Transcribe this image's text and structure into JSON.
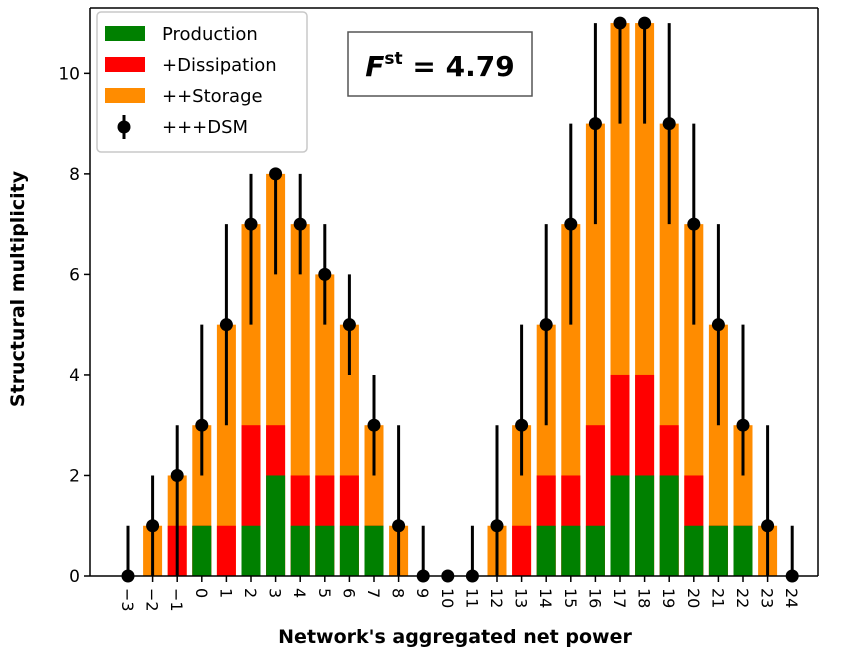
{
  "chart_data": {
    "type": "bar",
    "xlabel": "Network's aggregated net power",
    "ylabel": "Structural multiplicity",
    "ylim": [
      0,
      11.3
    ],
    "yticks": [
      0,
      2,
      4,
      6,
      8,
      10
    ],
    "grid": false,
    "legend_position": "top-left",
    "annotation": {
      "prefix": "F",
      "superscript": "st",
      "text": " = 4.79"
    },
    "categories": [
      "−3",
      "−2",
      "−1",
      "0",
      "1",
      "2",
      "3",
      "4",
      "5",
      "6",
      "7",
      "8",
      "9",
      "10",
      "11",
      "12",
      "13",
      "14",
      "15",
      "16",
      "17",
      "18",
      "19",
      "20",
      "21",
      "22",
      "23",
      "24"
    ],
    "series": [
      {
        "name": "Production",
        "color": "#008000",
        "values": [
          0,
          0,
          0,
          1,
          0,
          1,
          2,
          1,
          1,
          1,
          1,
          0,
          0,
          0,
          0,
          0,
          0,
          1,
          1,
          1,
          2,
          2,
          2,
          1,
          1,
          1,
          0,
          0
        ]
      },
      {
        "name": "+Dissipation",
        "color": "#ff0000",
        "values": [
          0,
          0,
          1,
          1,
          1,
          3,
          3,
          2,
          2,
          2,
          1,
          0,
          0,
          0,
          0,
          0,
          1,
          2,
          2,
          3,
          4,
          4,
          3,
          2,
          1,
          1,
          0,
          0
        ]
      },
      {
        "name": "++Storage",
        "color": "#ff8c00",
        "values": [
          0,
          1,
          2,
          3,
          5,
          7,
          8,
          7,
          6,
          5,
          3,
          1,
          0,
          0,
          0,
          1,
          3,
          5,
          7,
          9,
          11,
          11,
          9,
          7,
          5,
          3,
          1,
          0
        ]
      },
      {
        "name": "+++DSM",
        "color": "#000000",
        "marker": "point-with-errorbar",
        "values": [
          0,
          1,
          2,
          3,
          5,
          7,
          8,
          7,
          6,
          5,
          3,
          1,
          0,
          0,
          0,
          1,
          3,
          5,
          7,
          9,
          11,
          11,
          9,
          7,
          5,
          3,
          1,
          0
        ],
        "error_low": [
          0,
          0,
          0,
          2,
          3,
          5,
          6,
          6,
          5,
          4,
          2,
          0,
          0,
          0,
          0,
          0,
          2,
          3,
          5,
          7,
          9,
          9,
          7,
          5,
          3,
          2,
          0,
          0
        ],
        "error_high": [
          1,
          2,
          3,
          5,
          7,
          8,
          8,
          8,
          7,
          6,
          4,
          3,
          1,
          0,
          1,
          3,
          5,
          7,
          9,
          11,
          11,
          11,
          11,
          9,
          7,
          5,
          3,
          1
        ]
      }
    ]
  }
}
